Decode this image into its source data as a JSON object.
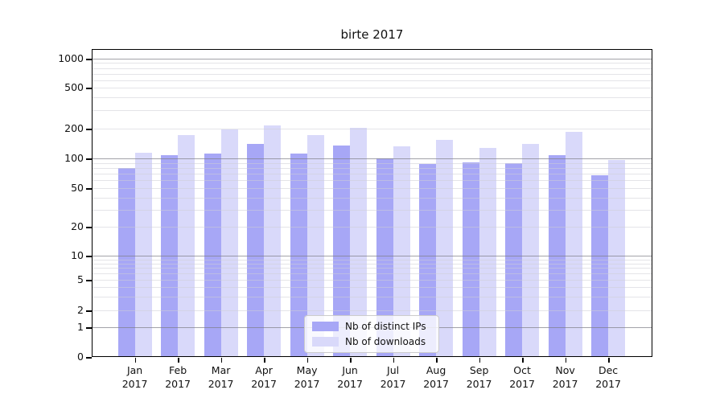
{
  "title": "birte 2017",
  "chart_data": {
    "type": "bar",
    "title": "birte 2017",
    "categories": [
      "Jan 2017",
      "Feb 2017",
      "Mar 2017",
      "Apr 2017",
      "May 2017",
      "Jun 2017",
      "Jul 2017",
      "Aug 2017",
      "Sep 2017",
      "Oct 2017",
      "Nov 2017",
      "Dec 2017"
    ],
    "series": [
      {
        "name": "Nb of distinct IPs",
        "color": "#a7a7f6",
        "values": [
          80,
          107,
          112,
          140,
          112,
          135,
          100,
          87,
          91,
          90,
          107,
          67
        ]
      },
      {
        "name": "Nb of downloads",
        "color": "#d9d9fa",
        "values": [
          114,
          172,
          196,
          215,
          171,
          204,
          132,
          153,
          127,
          139,
          184,
          97
        ]
      }
    ],
    "xlabel": "",
    "ylabel": "",
    "yscale": "symlog",
    "y_ticks": [
      0,
      1,
      2,
      5,
      10,
      20,
      50,
      100,
      200,
      500,
      1000
    ],
    "ylim": [
      0,
      1000
    ],
    "grid": "on",
    "grid_major_color": "#b0b0b0",
    "grid_minor_color": "#e6e6ea",
    "legend_position": "lower center"
  }
}
